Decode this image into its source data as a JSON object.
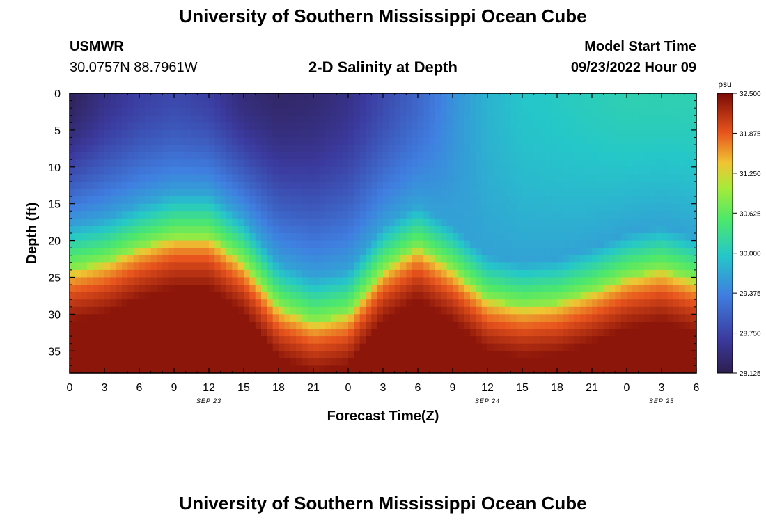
{
  "header": {
    "title": "University of Southern Mississippi Ocean Cube",
    "station": "USMWR",
    "coords": "30.0757N  88.7961W",
    "model_start_label": "Model Start Time",
    "model_start_value": "09/23/2022 Hour 09",
    "footer_title": "University of Southern Mississippi Ocean Cube"
  },
  "chart_data": {
    "type": "heatmap",
    "title": "2-D Salinity at Depth",
    "xlabel": "Forecast Time(Z)",
    "ylabel": "Depth (ft)",
    "x_tick_labels": [
      "0",
      "3",
      "6",
      "9",
      "12",
      "15",
      "18",
      "21",
      "0",
      "3",
      "6",
      "9",
      "12",
      "15",
      "18",
      "21",
      "0",
      "3",
      "6"
    ],
    "date_labels": [
      {
        "text": "SEP 23",
        "tick_index": 4
      },
      {
        "text": "SEP 24",
        "tick_index": 12
      },
      {
        "text": "SEP 25",
        "tick_index": 17
      }
    ],
    "xlim_hours": [
      0,
      54
    ],
    "ylim_ft": [
      0,
      38
    ],
    "y_ticks": [
      0,
      5,
      10,
      15,
      20,
      25,
      30,
      35
    ],
    "colorbar": {
      "unit": "psu",
      "min": 28.125,
      "max": 32.5,
      "tick_labels": [
        "32.500",
        "31.875",
        "31.250",
        "30.625",
        "30.000",
        "29.375",
        "28.750",
        "28.125"
      ]
    },
    "interface_depth_ft": {
      "hours": [
        0,
        3,
        6,
        9,
        12,
        15,
        18,
        21,
        24,
        27,
        30,
        33,
        36,
        39,
        42,
        45,
        48,
        51,
        54
      ],
      "depth": [
        24,
        23,
        21,
        19.5,
        19.5,
        23,
        29,
        31,
        30,
        24,
        21,
        24,
        28,
        29,
        28.5,
        27,
        25,
        24,
        25.5
      ]
    },
    "surface_salinity_psu": {
      "hours": [
        0,
        3,
        6,
        9,
        12,
        15,
        18,
        21,
        24,
        27,
        30,
        33,
        36,
        39,
        42,
        45,
        48,
        51,
        54
      ],
      "value": [
        28.2,
        28.5,
        28.7,
        28.8,
        28.7,
        28.4,
        28.3,
        28.35,
        28.5,
        28.8,
        29.1,
        29.5,
        29.8,
        29.95,
        30.0,
        30.05,
        30.1,
        30.1,
        30.1
      ]
    },
    "bottom_salinity_psu": 32.4
  }
}
